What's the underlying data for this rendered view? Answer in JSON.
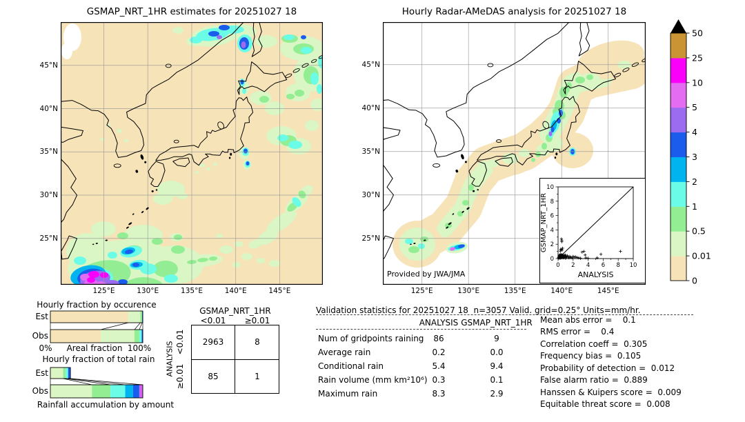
{
  "chart_data": [
    {
      "type": "heatmap",
      "title": "GSMAP_NRT_1HR estimates for 20251027 18",
      "x_ticks": [
        "125°E",
        "130°E",
        "135°E",
        "140°E",
        "145°E"
      ],
      "y_ticks": [
        "45°N",
        "40°N",
        "35°N",
        "30°N",
        "25°N"
      ],
      "units": "mm/hr"
    },
    {
      "type": "heatmap",
      "title": "Hourly Radar-AMeDAS analysis for 20251027 18",
      "x_ticks": [
        "125°E",
        "130°E",
        "135°E",
        "140°E",
        "145°E"
      ],
      "y_ticks": [
        "45°N",
        "40°N",
        "35°N",
        "30°N",
        "25°N"
      ],
      "units": "mm/hr",
      "annotation": "Provided by JWA/JMA"
    },
    {
      "type": "colorbar",
      "labels": [
        "0",
        "0.01",
        "0.5",
        "1",
        "2",
        "3",
        "4",
        "5",
        "10",
        "25",
        "50"
      ],
      "colors": [
        "#f7e3b8",
        "#d9f6c4",
        "#93ee93",
        "#6bfce8",
        "#00b4f0",
        "#1c5cec",
        "#9c6cf0",
        "#e46cf2",
        "#fa00fa",
        "#ca9434"
      ],
      "over_color": "#000000"
    },
    {
      "type": "bar",
      "title": "Hourly fraction by occurence",
      "categories": [
        "Est",
        "Obs"
      ],
      "axis_left": "0%",
      "axis_center": "Areal fraction",
      "axis_right": "100%",
      "est_segments": [
        {
          "color": "#f7e3b8",
          "frac": 0.843
        },
        {
          "color": "#d9f6c4",
          "frac": 0.131
        },
        {
          "color": "#93ee93",
          "frac": 0.019
        },
        {
          "color": "#1c5cec",
          "frac": 0.007
        }
      ],
      "obs_segments": [
        {
          "color": "#f7e3b8",
          "frac": 0.545
        },
        {
          "color": "#d9f6c4",
          "frac": 0.365
        },
        {
          "color": "#93ee93",
          "frac": 0.052
        },
        {
          "color": "#6bfce8",
          "frac": 0.026
        },
        {
          "color": "#1c5cec",
          "frac": 0.012
        }
      ]
    },
    {
      "type": "bar",
      "title": "Hourly fraction of total rain",
      "caption": "Rainfall accumulation by amount",
      "categories": [
        "Est",
        "Obs"
      ],
      "est_segments": [
        {
          "color": "#d9f6c4",
          "frac": 0.138
        },
        {
          "color": "#93ee93",
          "frac": 0.028
        },
        {
          "color": "#6bfce8",
          "frac": 0.026
        },
        {
          "color": "#1c5cec",
          "frac": 0.025
        }
      ],
      "obs_segments": [
        {
          "color": "#d9f6c4",
          "frac": 0.45
        },
        {
          "color": "#93ee93",
          "frac": 0.2
        },
        {
          "color": "#6bfce8",
          "frac": 0.16
        },
        {
          "color": "#00b4f0",
          "frac": 0.085
        },
        {
          "color": "#1c5cec",
          "frac": 0.067
        },
        {
          "color": "#cf63f0",
          "frac": 0.038
        }
      ]
    },
    {
      "type": "table",
      "col_title": "GSMAP_NRT_1HR",
      "row_title": "ANALYSIS",
      "col_labels": [
        "<0.01",
        "≥0.01"
      ],
      "row_labels": [
        "<0.01",
        "≥0.01"
      ],
      "values": [
        [
          "2963",
          "8"
        ],
        [
          "85",
          "1"
        ]
      ]
    },
    {
      "type": "table",
      "header_line": "Validation statistics for 20251027 18  n=3057 Valid. grid=0.25° Units=mm/hr.",
      "columns": [
        "ANALYSIS",
        "GSMAP_NRT_1HR"
      ],
      "rows": [
        {
          "label": "Num of gridpoints raining",
          "values": [
            "86",
            "9"
          ]
        },
        {
          "label": "Average rain",
          "values": [
            "0.2",
            "0.0"
          ]
        },
        {
          "label": "Conditional rain",
          "values": [
            "5.4",
            "9.4"
          ]
        },
        {
          "label": "Rain volume (mm km²10⁶)",
          "values": [
            "0.3",
            "0.1"
          ]
        },
        {
          "label": "Maximum rain",
          "values": [
            "8.3",
            "2.9"
          ]
        }
      ]
    },
    {
      "type": "list",
      "lines": [
        "Mean abs error =    0.1",
        "RMS error =    0.4",
        "Correlation coeff =  0.305",
        "Frequency bias =  0.105",
        "Probability of detection =  0.012",
        "False alarm ratio =  0.889",
        "Hanssen & Kuipers score =  0.009",
        "Equitable threat score =  0.008"
      ]
    },
    {
      "type": "scatter",
      "xlabel": "ANALYSIS",
      "ylabel": "GSMAP_NRT_1HR",
      "xlim": [
        0,
        10
      ],
      "ylim": [
        0,
        10
      ],
      "diagonal": true,
      "points": [
        [
          0.05,
          0.1
        ],
        [
          0.1,
          0.05
        ],
        [
          0.1,
          0.25
        ],
        [
          0.15,
          0.15
        ],
        [
          0.15,
          0.45
        ],
        [
          0.2,
          0.1
        ],
        [
          0.2,
          0.3
        ],
        [
          0.25,
          0.2
        ],
        [
          0.25,
          0.5
        ],
        [
          0.3,
          0.05
        ],
        [
          0.3,
          0.35
        ],
        [
          0.3,
          1.05
        ],
        [
          0.35,
          0.15
        ],
        [
          0.35,
          0.6
        ],
        [
          0.35,
          1.3
        ],
        [
          0.4,
          0.25
        ],
        [
          0.4,
          0.45
        ],
        [
          0.45,
          0.1
        ],
        [
          0.45,
          1.25
        ],
        [
          0.45,
          2.75
        ],
        [
          0.5,
          0.3
        ],
        [
          0.5,
          0.55
        ],
        [
          0.5,
          2.55
        ],
        [
          0.5,
          2.35
        ],
        [
          0.55,
          0.15
        ],
        [
          0.55,
          1.2
        ],
        [
          0.6,
          0.4
        ],
        [
          0.6,
          1.45
        ],
        [
          0.65,
          0.25
        ],
        [
          0.7,
          0.1
        ],
        [
          0.7,
          0.5
        ],
        [
          0.75,
          0.3
        ],
        [
          0.8,
          0.15
        ],
        [
          0.85,
          0.45
        ],
        [
          0.9,
          0.25
        ],
        [
          0.95,
          0.5
        ],
        [
          1.0,
          0.1
        ],
        [
          1.05,
          0.35
        ],
        [
          1.15,
          0.2
        ],
        [
          1.25,
          0.4
        ],
        [
          1.35,
          0.25
        ],
        [
          1.45,
          0.1
        ],
        [
          1.55,
          0.3
        ],
        [
          1.7,
          0.2
        ],
        [
          1.85,
          0.1
        ],
        [
          2.0,
          0.3
        ],
        [
          2.15,
          0.2
        ],
        [
          2.35,
          0.25
        ],
        [
          2.55,
          0.15
        ],
        [
          2.75,
          0.1
        ],
        [
          3.0,
          0.05
        ],
        [
          3.2,
          0.9
        ],
        [
          3.45,
          1.0
        ],
        [
          3.6,
          0.5
        ],
        [
          3.7,
          0.1
        ],
        [
          4.0,
          0.05
        ],
        [
          5.2,
          0.1
        ],
        [
          5.7,
          0.6
        ],
        [
          8.3,
          1.0
        ]
      ]
    }
  ]
}
